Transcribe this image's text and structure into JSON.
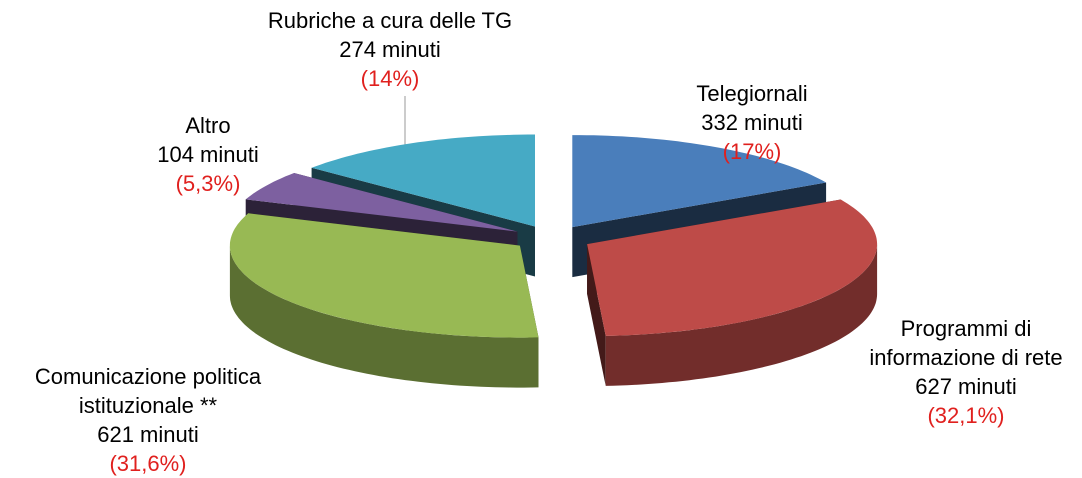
{
  "chart_data": {
    "type": "pie",
    "categories": [
      [
        "Telegiornali"
      ],
      [
        "Programmi di",
        "informazione di rete"
      ],
      [
        "Comunicazione politica",
        "istituzionale **"
      ],
      [
        "Altro"
      ],
      [
        "Rubriche a cura delle TG"
      ]
    ],
    "values": [
      332,
      627,
      621,
      104,
      274
    ],
    "value_labels": [
      "332 minuti",
      "627 minuti",
      "621 minuti",
      "104 minuti",
      "274 minuti"
    ],
    "percentages": [
      17,
      32.1,
      31.6,
      5.3,
      14
    ],
    "percentage_labels": [
      "(17%)",
      "(32,1%)",
      "(31,6%)",
      "(5,3%)",
      "(14%)"
    ],
    "colors": [
      "#4a7ebb",
      "#be4b48",
      "#98b954",
      "#7d60a0",
      "#46aac5"
    ]
  }
}
